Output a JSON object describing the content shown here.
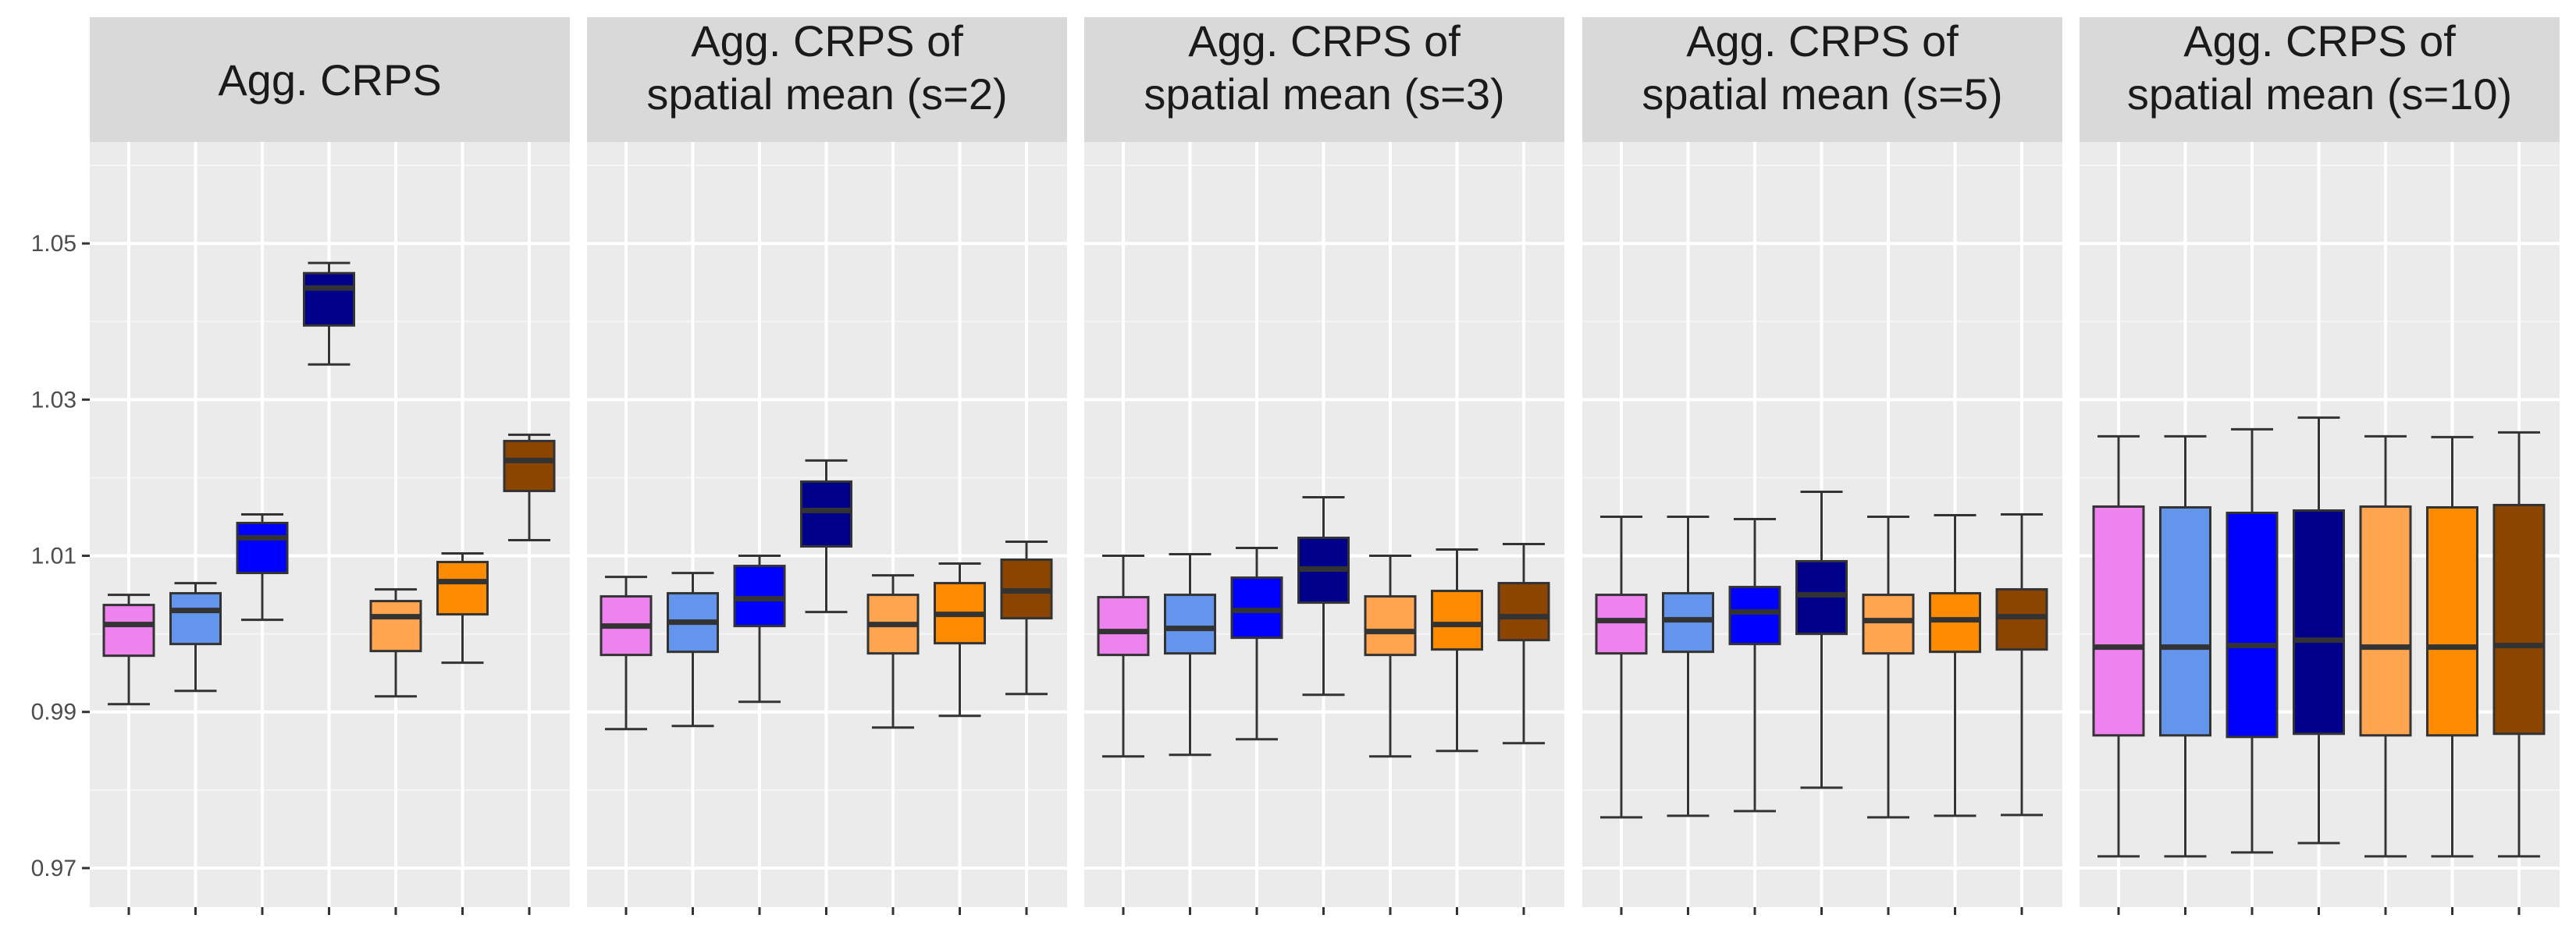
{
  "chart_data": {
    "type": "boxplot",
    "ylim": [
      0.965,
      1.063
    ],
    "y_ticks": [
      0.97,
      0.99,
      1.01,
      1.03,
      1.05
    ],
    "y_tick_labels": [
      "0.97",
      "0.99",
      "1.01",
      "1.03",
      "1.05"
    ],
    "xlabel": "",
    "ylabel": "",
    "legend": "none",
    "series_colors": [
      "#EE82EE",
      "#6495ED",
      "#0000FF",
      "#00008B",
      "#FFA54F",
      "#FF8C00",
      "#8B4500"
    ],
    "facets": [
      {
        "title_lines": [
          "Agg. CRPS"
        ],
        "boxes": [
          {
            "slot": 1,
            "lower_whisker": 0.991,
            "q1": 0.9972,
            "median": 1.0012,
            "q3": 1.0037,
            "upper_whisker": 1.005
          },
          {
            "slot": 2,
            "lower_whisker": 0.9927,
            "q1": 0.9987,
            "median": 1.003,
            "q3": 1.0052,
            "upper_whisker": 1.0065
          },
          {
            "slot": 3,
            "lower_whisker": 1.0018,
            "q1": 1.0078,
            "median": 1.0123,
            "q3": 1.0142,
            "upper_whisker": 1.0153
          },
          {
            "slot": 4,
            "lower_whisker": 1.0345,
            "q1": 1.0395,
            "median": 1.0443,
            "q3": 1.0462,
            "upper_whisker": 1.0475
          },
          {
            "slot": 5,
            "lower_whisker": 0.992,
            "q1": 0.9978,
            "median": 1.0022,
            "q3": 1.0042,
            "upper_whisker": 1.0057
          },
          {
            "slot": 6,
            "lower_whisker": 0.9963,
            "q1": 1.0025,
            "median": 1.0067,
            "q3": 1.0092,
            "upper_whisker": 1.0103
          },
          {
            "slot": 7,
            "lower_whisker": 1.012,
            "q1": 1.0183,
            "median": 1.0222,
            "q3": 1.0247,
            "upper_whisker": 1.0255
          }
        ]
      },
      {
        "title_lines": [
          "Agg. CRPS of",
          "spatial mean (s=2)"
        ],
        "boxes": [
          {
            "slot": 1,
            "lower_whisker": 0.9878,
            "q1": 0.9973,
            "median": 1.001,
            "q3": 1.0048,
            "upper_whisker": 1.0073
          },
          {
            "slot": 2,
            "lower_whisker": 0.9882,
            "q1": 0.9977,
            "median": 1.0015,
            "q3": 1.0052,
            "upper_whisker": 1.0078
          },
          {
            "slot": 3,
            "lower_whisker": 0.9913,
            "q1": 1.001,
            "median": 1.0045,
            "q3": 1.0087,
            "upper_whisker": 1.01
          },
          {
            "slot": 4,
            "lower_whisker": 1.0028,
            "q1": 1.0112,
            "median": 1.0158,
            "q3": 1.0195,
            "upper_whisker": 1.0222
          },
          {
            "slot": 5,
            "lower_whisker": 0.988,
            "q1": 0.9975,
            "median": 1.0012,
            "q3": 1.005,
            "upper_whisker": 1.0075
          },
          {
            "slot": 6,
            "lower_whisker": 0.9895,
            "q1": 0.9988,
            "median": 1.0025,
            "q3": 1.0065,
            "upper_whisker": 1.009
          },
          {
            "slot": 7,
            "lower_whisker": 0.9923,
            "q1": 1.002,
            "median": 1.0055,
            "q3": 1.0095,
            "upper_whisker": 1.0118
          }
        ]
      },
      {
        "title_lines": [
          "Agg. CRPS of",
          "spatial mean (s=3)"
        ],
        "boxes": [
          {
            "slot": 1,
            "lower_whisker": 0.9843,
            "q1": 0.9973,
            "median": 1.0003,
            "q3": 1.0047,
            "upper_whisker": 1.01
          },
          {
            "slot": 2,
            "lower_whisker": 0.9845,
            "q1": 0.9975,
            "median": 1.0007,
            "q3": 1.005,
            "upper_whisker": 1.0102
          },
          {
            "slot": 3,
            "lower_whisker": 0.9865,
            "q1": 0.9995,
            "median": 1.003,
            "q3": 1.0072,
            "upper_whisker": 1.011
          },
          {
            "slot": 4,
            "lower_whisker": 0.9922,
            "q1": 1.004,
            "median": 1.0083,
            "q3": 1.0123,
            "upper_whisker": 1.0175
          },
          {
            "slot": 5,
            "lower_whisker": 0.9843,
            "q1": 0.9973,
            "median": 1.0003,
            "q3": 1.0048,
            "upper_whisker": 1.01
          },
          {
            "slot": 6,
            "lower_whisker": 0.985,
            "q1": 0.998,
            "median": 1.0012,
            "q3": 1.0055,
            "upper_whisker": 1.0108
          },
          {
            "slot": 7,
            "lower_whisker": 0.986,
            "q1": 0.9992,
            "median": 1.0022,
            "q3": 1.0065,
            "upper_whisker": 1.0115
          }
        ]
      },
      {
        "title_lines": [
          "Agg. CRPS of",
          "spatial mean (s=5)"
        ],
        "boxes": [
          {
            "slot": 1,
            "lower_whisker": 0.9765,
            "q1": 0.9975,
            "median": 1.0017,
            "q3": 1.005,
            "upper_whisker": 1.015
          },
          {
            "slot": 2,
            "lower_whisker": 0.9767,
            "q1": 0.9977,
            "median": 1.0018,
            "q3": 1.0052,
            "upper_whisker": 1.015
          },
          {
            "slot": 3,
            "lower_whisker": 0.9773,
            "q1": 0.9987,
            "median": 1.0028,
            "q3": 1.006,
            "upper_whisker": 1.0147
          },
          {
            "slot": 4,
            "lower_whisker": 0.9803,
            "q1": 1.0,
            "median": 1.005,
            "q3": 1.0093,
            "upper_whisker": 1.0182
          },
          {
            "slot": 5,
            "lower_whisker": 0.9765,
            "q1": 0.9975,
            "median": 1.0017,
            "q3": 1.005,
            "upper_whisker": 1.015
          },
          {
            "slot": 6,
            "lower_whisker": 0.9767,
            "q1": 0.9977,
            "median": 1.0018,
            "q3": 1.0052,
            "upper_whisker": 1.0152
          },
          {
            "slot": 7,
            "lower_whisker": 0.9768,
            "q1": 0.998,
            "median": 1.0022,
            "q3": 1.0057,
            "upper_whisker": 1.0153
          }
        ]
      },
      {
        "title_lines": [
          "Agg. CRPS of",
          "spatial mean (s=10)"
        ],
        "boxes": [
          {
            "slot": 1,
            "lower_whisker": 0.9715,
            "q1": 0.987,
            "median": 0.9983,
            "q3": 1.0163,
            "upper_whisker": 1.0253
          },
          {
            "slot": 2,
            "lower_whisker": 0.9715,
            "q1": 0.987,
            "median": 0.9983,
            "q3": 1.0162,
            "upper_whisker": 1.0253
          },
          {
            "slot": 3,
            "lower_whisker": 0.972,
            "q1": 0.9868,
            "median": 0.9985,
            "q3": 1.0155,
            "upper_whisker": 1.0262
          },
          {
            "slot": 4,
            "lower_whisker": 0.9732,
            "q1": 0.9872,
            "median": 0.9992,
            "q3": 1.0158,
            "upper_whisker": 1.0277
          },
          {
            "slot": 5,
            "lower_whisker": 0.9715,
            "q1": 0.987,
            "median": 0.9983,
            "q3": 1.0163,
            "upper_whisker": 1.0253
          },
          {
            "slot": 6,
            "lower_whisker": 0.9715,
            "q1": 0.987,
            "median": 0.9983,
            "q3": 1.0162,
            "upper_whisker": 1.0252
          },
          {
            "slot": 7,
            "lower_whisker": 0.9715,
            "q1": 0.9872,
            "median": 0.9985,
            "q3": 1.0165,
            "upper_whisker": 1.0258
          }
        ]
      }
    ]
  }
}
